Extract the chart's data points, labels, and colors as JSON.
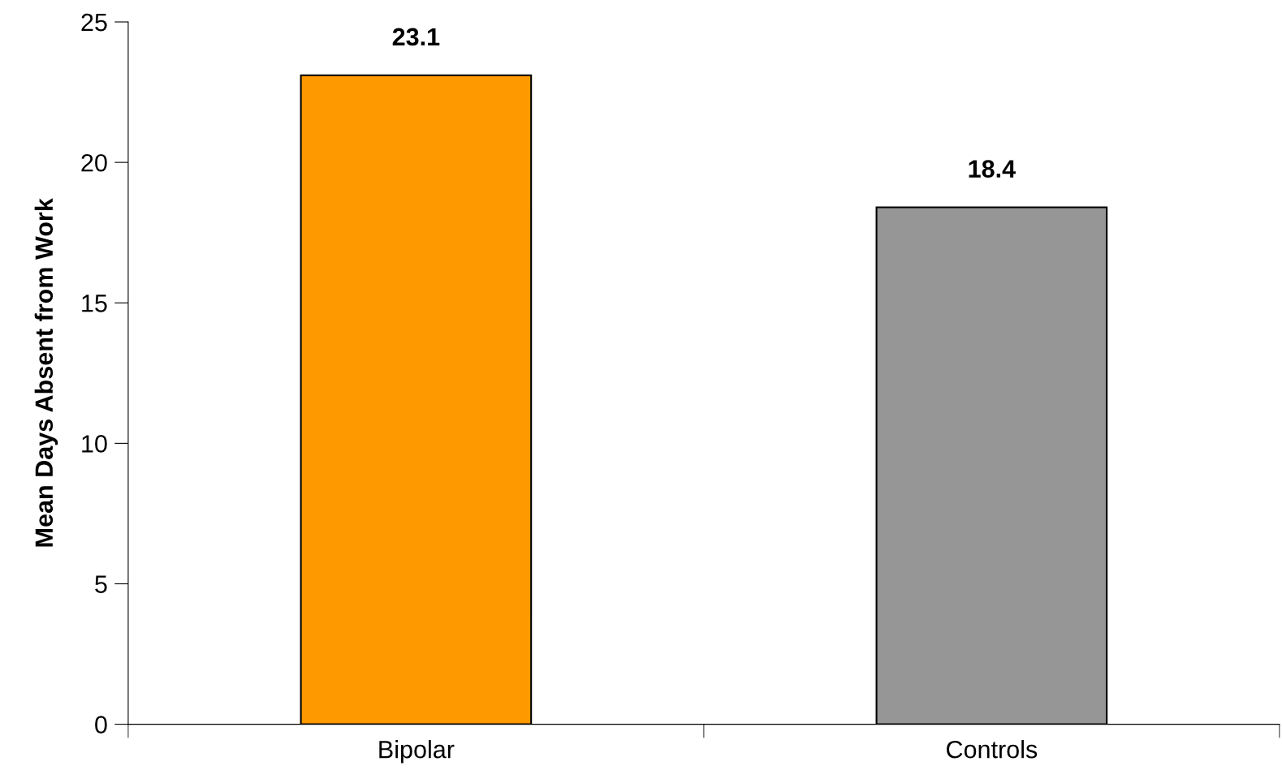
{
  "chart_data": {
    "type": "bar",
    "ylabel": "Mean Days Absent from Work",
    "categories": [
      "Bipolar",
      "Controls"
    ],
    "values": [
      23.1,
      18.4
    ],
    "colors": [
      "#ff9900",
      "#969696"
    ],
    "ylim": [
      0,
      25
    ],
    "yticks": [
      0,
      5,
      10,
      15,
      20,
      25
    ],
    "data_labels": true,
    "grid": false,
    "legend": false
  }
}
